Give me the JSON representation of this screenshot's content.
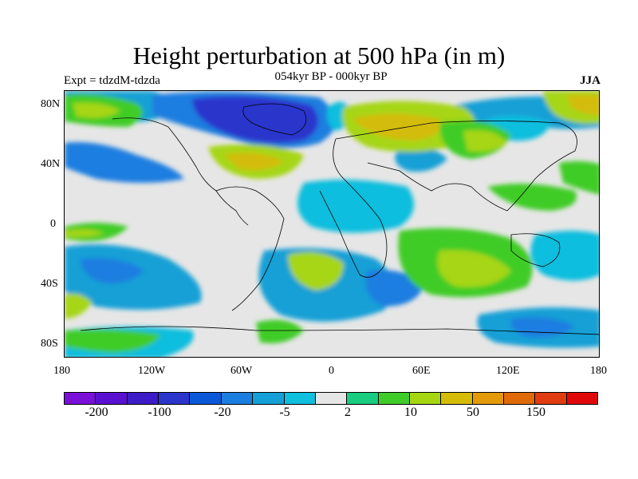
{
  "title": "Height perturbation at 500 hPa (in m)",
  "subtitle": "054kyr BP - 000kyr BP",
  "left_label": "Expt = tdzdM-tdzda",
  "right_label": "JJA",
  "map": {
    "lat_labels": [
      "80N",
      "40N",
      "0",
      "40S",
      "80S"
    ],
    "lon_labels": [
      "180",
      "120W",
      "60W",
      "0",
      "60E",
      "120E",
      "180"
    ]
  },
  "colorbar": {
    "colors": [
      "#7a10d8",
      "#5a10d0",
      "#3c1cc6",
      "#2a35cc",
      "#0a58d8",
      "#1a7ee0",
      "#14a0d6",
      "#10bede",
      "#e6e6e6",
      "#18cc80",
      "#40cc28",
      "#a6d612",
      "#d4bc08",
      "#e49a08",
      "#e06a08",
      "#e03c10",
      "#e00808"
    ],
    "labels": [
      "-200",
      "-100",
      "-20",
      "-5",
      "2",
      "10",
      "50",
      "150"
    ]
  }
}
